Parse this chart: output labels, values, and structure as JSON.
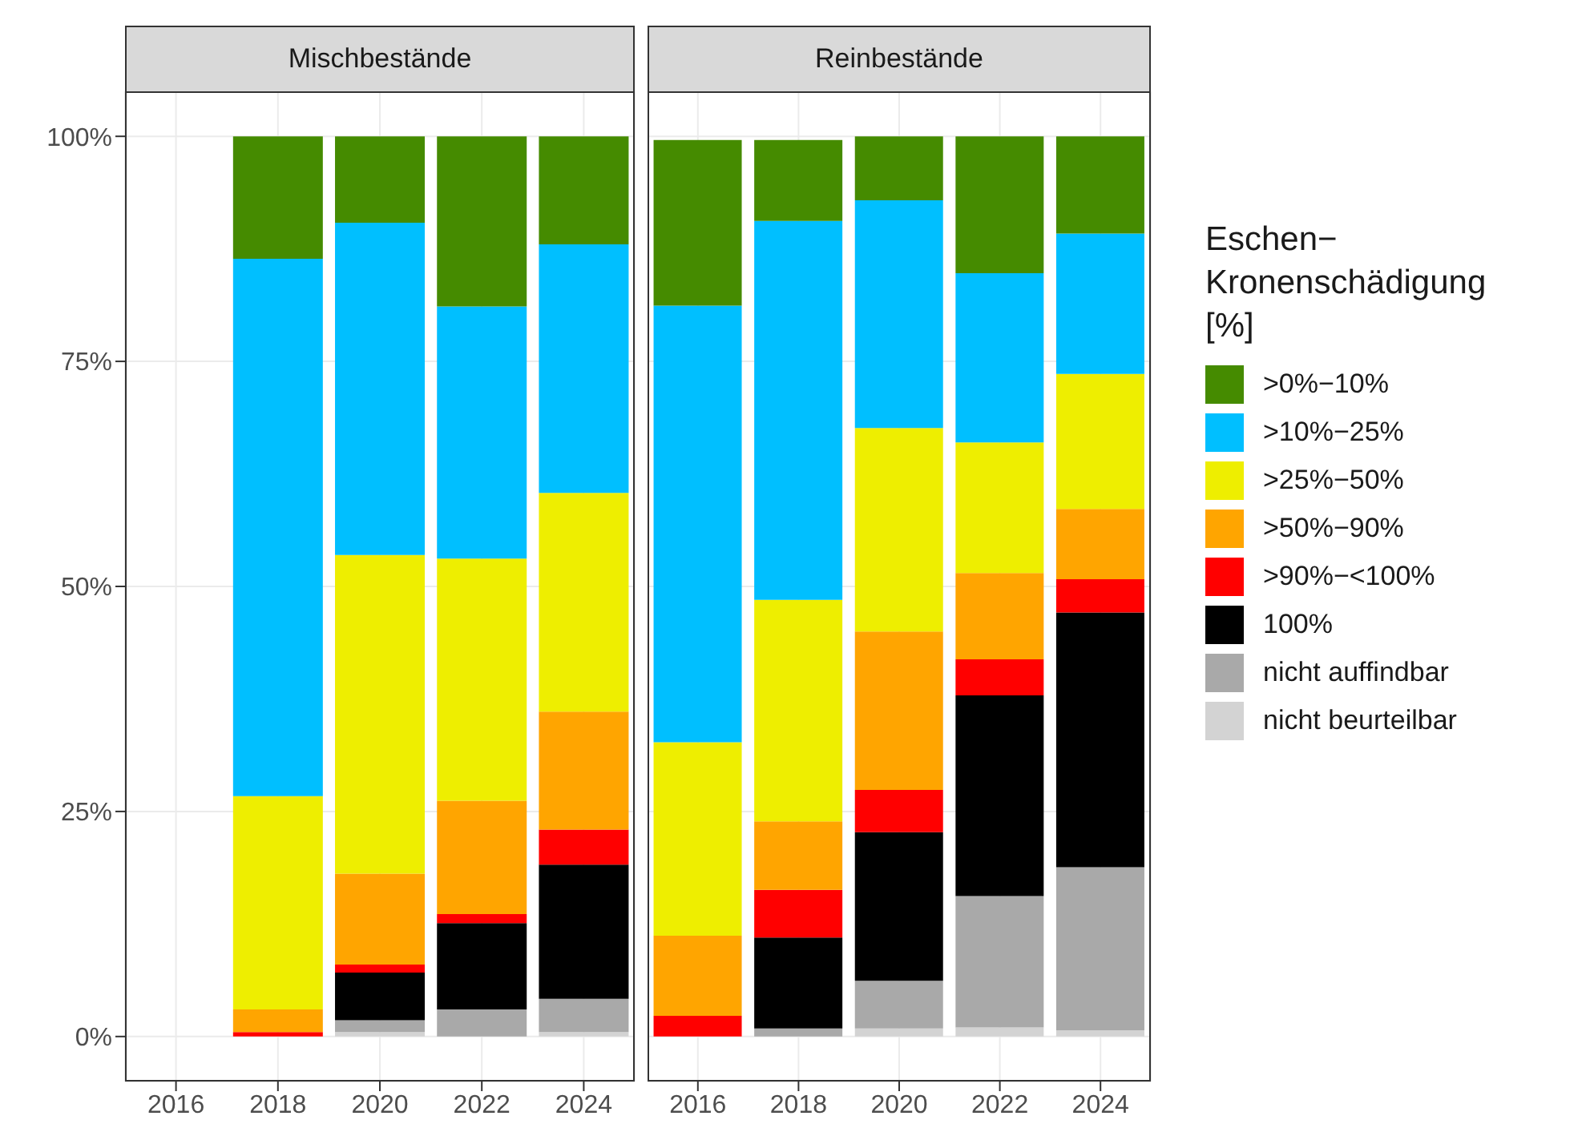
{
  "chart_data": [
    {
      "type": "bar",
      "title": "Mischbestände",
      "categories": [
        "2016",
        "2018",
        "2020",
        "2022",
        "2024"
      ],
      "stacked": true,
      "ylim": [
        -5,
        105
      ],
      "yticks": [
        {
          "value": 0,
          "label": "0%"
        },
        {
          "value": 25,
          "label": "25%"
        },
        {
          "value": 50,
          "label": "50%"
        },
        {
          "value": 75,
          "label": "75%"
        },
        {
          "value": 100,
          "label": "100%"
        }
      ],
      "grid": true,
      "series": [
        {
          "color": "#d3d3d3",
          "values": [
            null,
            0,
            0.5,
            0,
            0.5
          ]
        },
        {
          "color": "#a9a9a9",
          "values": [
            null,
            0,
            1.3,
            3.0,
            3.7
          ]
        },
        {
          "color": "#000000",
          "values": [
            null,
            0,
            5.3,
            9.6,
            14.9
          ]
        },
        {
          "color": "#ff0000",
          "values": [
            null,
            0.5,
            0.9,
            1.0,
            3.9
          ]
        },
        {
          "color": "#ffa500",
          "values": [
            null,
            2.5,
            10.1,
            12.6,
            13.1
          ]
        },
        {
          "color": "#eeee00",
          "values": [
            null,
            23.7,
            35.4,
            26.9,
            24.3
          ]
        },
        {
          "color": "#00bfff",
          "values": [
            null,
            59.7,
            36.9,
            28.0,
            27.6
          ]
        },
        {
          "color": "#458b00",
          "values": [
            null,
            13.6,
            9.6,
            18.9,
            12.0
          ]
        }
      ]
    },
    {
      "type": "bar",
      "title": "Reinbestände",
      "categories": [
        "2016",
        "2018",
        "2020",
        "2022",
        "2024"
      ],
      "stacked": true,
      "ylim": [
        -5,
        105
      ],
      "yticks": [
        {
          "value": 0,
          "label": null
        },
        {
          "value": 25,
          "label": null
        },
        {
          "value": 50,
          "label": null
        },
        {
          "value": 75,
          "label": null
        },
        {
          "value": 100,
          "label": null
        }
      ],
      "grid": true,
      "tick_labels": "x",
      "legend": "right",
      "legend_title": "Eschen−\nKronenschädigung\n[%]",
      "series": [
        {
          "name": "nicht beurteilbar",
          "color": "#d3d3d3",
          "values": [
            0,
            0,
            0.9,
            1.0,
            0.7
          ]
        },
        {
          "name": "nicht auffindbar",
          "color": "#a9a9a9",
          "values": [
            0,
            0.9,
            5.3,
            14.6,
            18.1
          ]
        },
        {
          "name": "100%",
          "color": "#000000",
          "values": [
            0,
            10.1,
            16.5,
            22.3,
            28.3
          ]
        },
        {
          "name": ">90%−<100%",
          "color": "#ff0000",
          "values": [
            2.3,
            5.3,
            4.7,
            4.0,
            3.7
          ]
        },
        {
          "name": ">50%−90%",
          "color": "#ffa500",
          "values": [
            8.9,
            7.6,
            17.6,
            9.6,
            7.8
          ]
        },
        {
          "name": ">25%−50%",
          "color": "#eeee00",
          "values": [
            21.5,
            24.6,
            22.6,
            14.5,
            15.0
          ]
        },
        {
          "name": ">10%−25%",
          "color": "#00bfff",
          "values": [
            48.5,
            42.1,
            25.3,
            18.8,
            15.6
          ]
        },
        {
          "name": ">0%−10%",
          "color": "#458b00",
          "values": [
            18.4,
            9.0,
            7.1,
            15.2,
            10.8
          ]
        }
      ]
    }
  ]
}
